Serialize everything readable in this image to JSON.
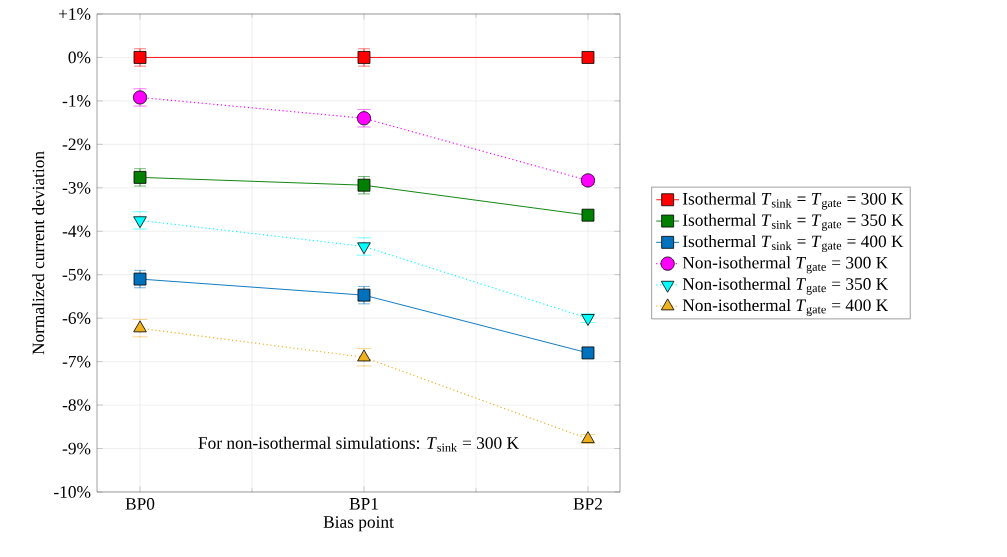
{
  "chart_data": {
    "type": "line",
    "xlabel": "Bias point",
    "ylabel": "Normalized current deviation",
    "categories": [
      "BP0",
      "BP1",
      "BP2"
    ],
    "ylim": [
      -10,
      1
    ],
    "yticks": [
      {
        "value": -10,
        "label": "-10%"
      },
      {
        "value": -9,
        "label": "-9%"
      },
      {
        "value": -8,
        "label": "-8%"
      },
      {
        "value": -7,
        "label": "-7%"
      },
      {
        "value": -6,
        "label": "-6%"
      },
      {
        "value": -5,
        "label": "-5%"
      },
      {
        "value": -4,
        "label": "-4%"
      },
      {
        "value": -3,
        "label": "-3%"
      },
      {
        "value": -2,
        "label": "-2%"
      },
      {
        "value": -1,
        "label": "-1%"
      },
      {
        "value": 0,
        "label": "0%"
      },
      {
        "value": 1,
        "label": "+1%"
      }
    ],
    "grid": true,
    "legend": "right",
    "series": [
      {
        "name": "Isothermal *T*$_{sink}$ = *T*$_{gate}$ = 300 K",
        "color": "#ff0000",
        "marker": "square",
        "line_style": "solid",
        "values": [
          0,
          0,
          0
        ],
        "errors": [
          0.2,
          0.2,
          0.1
        ]
      },
      {
        "name": "Isothermal *T*$_{sink}$ = *T*$_{gate}$ = 350 K",
        "color": "#007f00",
        "marker": "square",
        "line_style": "solid",
        "values": [
          -2.76,
          -2.94,
          -3.63
        ],
        "errors": [
          0.2,
          0.2,
          0.1
        ]
      },
      {
        "name": "Isothermal *T*$_{sink}$ = *T*$_{gate}$ = 400 K",
        "color": "#0072bd",
        "marker": "square",
        "line_style": "solid",
        "values": [
          -5.1,
          -5.47,
          -6.8
        ],
        "errors": [
          0.2,
          0.2,
          0.1
        ]
      },
      {
        "name": "Non-isothermal *T*$_{gate}$ = 300 K",
        "color": "#ff00ff",
        "marker": "circle",
        "line_style": "dotted",
        "values": [
          -0.92,
          -1.4,
          -2.83
        ],
        "errors": [
          0.2,
          0.2,
          0.1
        ]
      },
      {
        "name": "Non-isothermal *T*$_{gate}$ = 350 K",
        "color": "#00ffff",
        "marker": "triangle-down",
        "line_style": "dotted",
        "values": [
          -3.75,
          -4.35,
          -6.0
        ],
        "errors": [
          0.2,
          0.2,
          0.1
        ]
      },
      {
        "name": "Non-isothermal *T*$_{gate}$ = 400 K",
        "color": "#edb120",
        "marker": "triangle",
        "line_style": "dotted",
        "values": [
          -6.23,
          -6.9,
          -8.78
        ],
        "errors": [
          0.2,
          0.2,
          0.1
        ]
      }
    ],
    "annotations": [
      "For non-isothermal simulations: *T*$_{sink}$ = 300 K"
    ]
  }
}
